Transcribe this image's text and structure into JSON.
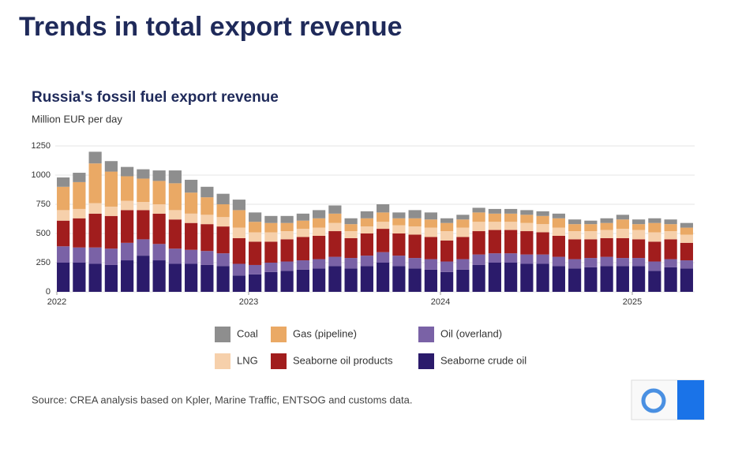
{
  "page_title": "Trends in total export revenue",
  "chart_data": {
    "type": "stacked_bar",
    "title": "Russia's fossil fuel export revenue",
    "subtitle": "Million EUR per day",
    "source": "Source: CREA analysis based on Kpler, Marine Traffic, ENTSOG and customs data.",
    "categories": [
      "2022",
      null,
      null,
      null,
      null,
      null,
      null,
      null,
      null,
      null,
      null,
      null,
      "2023",
      null,
      null,
      null,
      null,
      null,
      null,
      null,
      null,
      null,
      null,
      null,
      "2024",
      null,
      null,
      null,
      null,
      null,
      null,
      null,
      null,
      null,
      null,
      null,
      "2025",
      null,
      null,
      null
    ],
    "ylim": [
      0,
      1250
    ],
    "yticks": [
      0,
      250,
      500,
      750,
      1000,
      {
        "value": 1250,
        "label": "1250"
      }
    ],
    "grid": true,
    "series": [
      {
        "name": "Seaborne crude oil",
        "color": "#2b1b6b",
        "values": [
          250,
          250,
          240,
          230,
          270,
          310,
          270,
          240,
          240,
          230,
          220,
          140,
          150,
          170,
          180,
          190,
          200,
          220,
          200,
          220,
          250,
          220,
          200,
          190,
          170,
          190,
          230,
          250,
          250,
          240,
          240,
          220,
          200,
          210,
          220,
          220,
          220,
          180,
          210,
          200
        ]
      },
      {
        "name": "Oil (overland)",
        "color": "#7a62a6",
        "values": [
          140,
          130,
          140,
          140,
          150,
          140,
          140,
          130,
          120,
          120,
          110,
          100,
          80,
          80,
          80,
          80,
          80,
          80,
          90,
          90,
          90,
          90,
          90,
          90,
          90,
          90,
          90,
          80,
          80,
          80,
          80,
          80,
          80,
          80,
          80,
          70,
          70,
          80,
          70,
          70
        ]
      },
      {
        "name": "Seaborne oil products",
        "color": "#a11d1d",
        "values": [
          220,
          250,
          290,
          280,
          280,
          250,
          260,
          250,
          230,
          230,
          230,
          220,
          200,
          180,
          190,
          200,
          200,
          220,
          170,
          190,
          200,
          190,
          200,
          190,
          180,
          190,
          200,
          200,
          200,
          200,
          190,
          180,
          170,
          160,
          160,
          170,
          160,
          170,
          170,
          150
        ]
      },
      {
        "name": "LNG",
        "color": "#f6d0ab",
        "values": [
          90,
          80,
          90,
          80,
          80,
          70,
          80,
          80,
          80,
          80,
          80,
          90,
          80,
          80,
          70,
          70,
          70,
          70,
          60,
          60,
          60,
          70,
          70,
          80,
          80,
          80,
          80,
          70,
          70,
          70,
          70,
          70,
          70,
          70,
          70,
          80,
          80,
          80,
          70,
          70
        ]
      },
      {
        "name": "Gas (pipeline)",
        "color": "#eaa965",
        "values": [
          200,
          230,
          340,
          300,
          210,
          200,
          200,
          230,
          180,
          150,
          110,
          150,
          90,
          80,
          70,
          70,
          80,
          80,
          60,
          70,
          80,
          60,
          70,
          70,
          70,
          70,
          80,
          70,
          70,
          70,
          70,
          80,
          60,
          60,
          60,
          80,
          50,
          80,
          60,
          60
        ]
      },
      {
        "name": "Coal",
        "color": "#8e8e8e",
        "values": [
          80,
          80,
          100,
          90,
          80,
          80,
          90,
          110,
          110,
          90,
          90,
          90,
          80,
          60,
          60,
          60,
          70,
          70,
          50,
          60,
          70,
          50,
          70,
          60,
          40,
          40,
          40,
          40,
          40,
          40,
          40,
          40,
          40,
          30,
          40,
          40,
          40,
          40,
          40,
          40
        ]
      }
    ]
  }
}
